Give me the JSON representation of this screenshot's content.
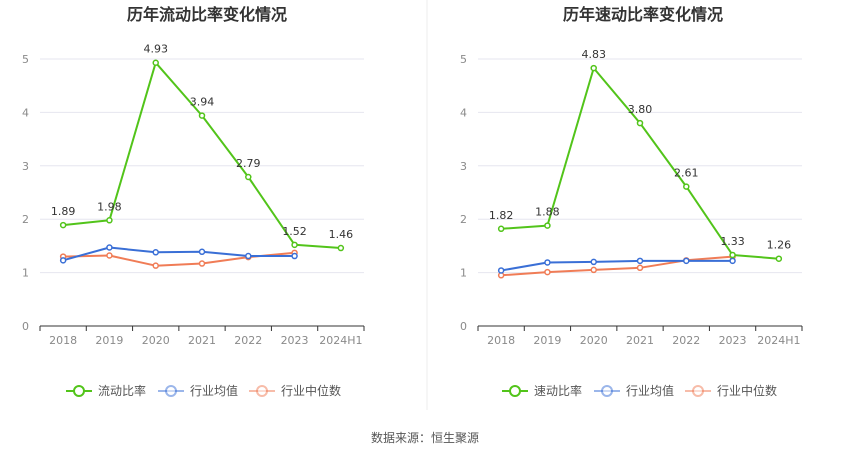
{
  "colors": {
    "ratio": "#52c41a",
    "industry_avg": "#3a6fd6",
    "industry_median": "#f07c56",
    "grid": "#e6e6ef",
    "axis": "#333333"
  },
  "source": "数据来源：恒生聚源",
  "chart_data": [
    {
      "type": "line",
      "title": "历年流动比率变化情况",
      "categories": [
        "2018",
        "2019",
        "2020",
        "2021",
        "2022",
        "2023",
        "2024H1"
      ],
      "y_ticks": [
        "0",
        "1",
        "2",
        "3",
        "4",
        "5"
      ],
      "ylim": [
        0,
        5
      ],
      "grid": true,
      "legend_position": "bottom",
      "series": [
        {
          "name": "流动比率",
          "key": "ratio",
          "values": [
            1.89,
            1.98,
            4.93,
            3.94,
            2.79,
            1.52,
            1.46
          ],
          "labels": [
            "1.89",
            "1.98",
            "4.93",
            "3.94",
            "2.79",
            "1.52",
            "1.46"
          ]
        },
        {
          "name": "行业均值",
          "key": "industry_avg",
          "values": [
            1.23,
            1.47,
            1.38,
            1.39,
            1.31,
            1.31,
            null
          ]
        },
        {
          "name": "行业中位数",
          "key": "industry_median",
          "values": [
            1.3,
            1.32,
            1.13,
            1.17,
            1.29,
            1.37,
            null
          ]
        }
      ]
    },
    {
      "type": "line",
      "title": "历年速动比率变化情况",
      "categories": [
        "2018",
        "2019",
        "2020",
        "2021",
        "2022",
        "2023",
        "2024H1"
      ],
      "y_ticks": [
        "0",
        "1",
        "2",
        "3",
        "4",
        "5"
      ],
      "ylim": [
        0,
        5
      ],
      "grid": true,
      "legend_position": "bottom",
      "series": [
        {
          "name": "速动比率",
          "key": "ratio",
          "values": [
            1.82,
            1.88,
            4.83,
            3.8,
            2.61,
            1.33,
            1.26
          ],
          "labels": [
            "1.82",
            "1.88",
            "4.83",
            "3.80",
            "2.61",
            "1.33",
            "1.26"
          ]
        },
        {
          "name": "行业均值",
          "key": "industry_avg",
          "values": [
            1.04,
            1.19,
            1.2,
            1.22,
            1.22,
            1.22,
            null
          ]
        },
        {
          "name": "行业中位数",
          "key": "industry_median",
          "values": [
            0.95,
            1.01,
            1.05,
            1.09,
            1.23,
            1.3,
            null
          ]
        }
      ]
    }
  ]
}
